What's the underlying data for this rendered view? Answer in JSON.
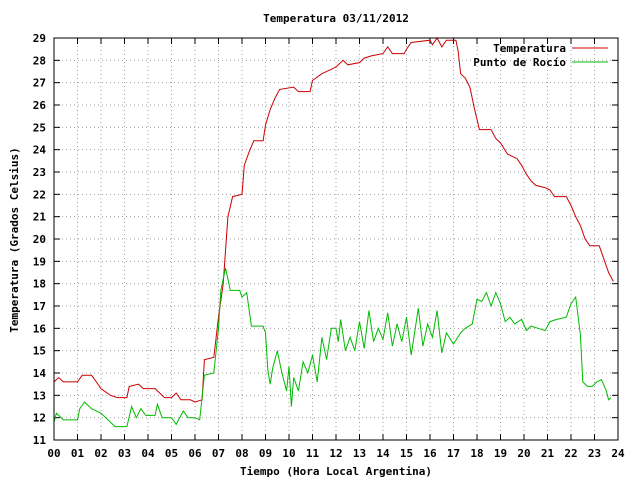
{
  "chart_data": {
    "type": "line",
    "title": "Temperatura 03/11/2012",
    "xlabel": "Tiempo (Hora Local Argentina)",
    "ylabel": "Temperatura (Grados Celsius)",
    "xlim": [
      0,
      24
    ],
    "ylim": [
      11,
      29
    ],
    "grid": true,
    "legend_position": "top-right",
    "x_ticks": [
      {
        "value": 0,
        "label": "00"
      },
      {
        "value": 1,
        "label": "01"
      },
      {
        "value": 2,
        "label": "02"
      },
      {
        "value": 3,
        "label": "03"
      },
      {
        "value": 4,
        "label": "04"
      },
      {
        "value": 5,
        "label": "05"
      },
      {
        "value": 6,
        "label": "06"
      },
      {
        "value": 7,
        "label": "07"
      },
      {
        "value": 8,
        "label": "08"
      },
      {
        "value": 9,
        "label": "09"
      },
      {
        "value": 10,
        "label": "10"
      },
      {
        "value": 11,
        "label": "11"
      },
      {
        "value": 12,
        "label": "12"
      },
      {
        "value": 13,
        "label": "13"
      },
      {
        "value": 14,
        "label": "14"
      },
      {
        "value": 15,
        "label": "15"
      },
      {
        "value": 16,
        "label": "16"
      },
      {
        "value": 17,
        "label": "17"
      },
      {
        "value": 18,
        "label": "18"
      },
      {
        "value": 19,
        "label": "19"
      },
      {
        "value": 20,
        "label": "20"
      },
      {
        "value": 21,
        "label": "21"
      },
      {
        "value": 22,
        "label": "22"
      },
      {
        "value": 23,
        "label": "23"
      },
      {
        "value": 24,
        "label": "24"
      }
    ],
    "y_ticks": [
      {
        "value": 11,
        "label": "11"
      },
      {
        "value": 12,
        "label": "12"
      },
      {
        "value": 13,
        "label": "13"
      },
      {
        "value": 14,
        "label": "14"
      },
      {
        "value": 15,
        "label": "15"
      },
      {
        "value": 16,
        "label": "16"
      },
      {
        "value": 17,
        "label": "17"
      },
      {
        "value": 18,
        "label": "18"
      },
      {
        "value": 19,
        "label": "19"
      },
      {
        "value": 20,
        "label": "20"
      },
      {
        "value": 21,
        "label": "21"
      },
      {
        "value": 22,
        "label": "22"
      },
      {
        "value": 23,
        "label": "23"
      },
      {
        "value": 24,
        "label": "24"
      },
      {
        "value": 25,
        "label": "25"
      },
      {
        "value": 26,
        "label": "26"
      },
      {
        "value": 27,
        "label": "27"
      },
      {
        "value": 28,
        "label": "28"
      },
      {
        "value": 29,
        "label": "29"
      }
    ],
    "series": [
      {
        "name": "Temperatura",
        "color": "#cc0000",
        "points": [
          [
            0.0,
            13.6
          ],
          [
            0.2,
            13.8
          ],
          [
            0.4,
            13.6
          ],
          [
            1.0,
            13.6
          ],
          [
            1.2,
            13.9
          ],
          [
            1.6,
            13.9
          ],
          [
            1.8,
            13.6
          ],
          [
            2.0,
            13.3
          ],
          [
            2.4,
            13.0
          ],
          [
            2.7,
            12.9
          ],
          [
            3.1,
            12.9
          ],
          [
            3.2,
            13.4
          ],
          [
            3.6,
            13.5
          ],
          [
            3.8,
            13.3
          ],
          [
            4.3,
            13.3
          ],
          [
            4.5,
            13.1
          ],
          [
            4.7,
            12.9
          ],
          [
            5.0,
            12.9
          ],
          [
            5.2,
            13.1
          ],
          [
            5.4,
            12.8
          ],
          [
            5.8,
            12.8
          ],
          [
            6.0,
            12.7
          ],
          [
            6.3,
            12.8
          ],
          [
            6.4,
            14.6
          ],
          [
            6.8,
            14.7
          ],
          [
            7.0,
            16.5
          ],
          [
            7.2,
            18.0
          ],
          [
            7.4,
            21.0
          ],
          [
            7.6,
            21.9
          ],
          [
            8.0,
            22.0
          ],
          [
            8.1,
            23.3
          ],
          [
            8.3,
            23.9
          ],
          [
            8.5,
            24.4
          ],
          [
            8.9,
            24.4
          ],
          [
            9.0,
            25.1
          ],
          [
            9.2,
            25.8
          ],
          [
            9.4,
            26.3
          ],
          [
            9.6,
            26.7
          ],
          [
            10.2,
            26.8
          ],
          [
            10.4,
            26.6
          ],
          [
            10.9,
            26.6
          ],
          [
            11.0,
            27.1
          ],
          [
            11.4,
            27.4
          ],
          [
            11.8,
            27.6
          ],
          [
            12.0,
            27.7
          ],
          [
            12.3,
            28.0
          ],
          [
            12.5,
            27.8
          ],
          [
            13.0,
            27.9
          ],
          [
            13.2,
            28.1
          ],
          [
            13.5,
            28.2
          ],
          [
            14.0,
            28.3
          ],
          [
            14.2,
            28.6
          ],
          [
            14.4,
            28.3
          ],
          [
            14.9,
            28.3
          ],
          [
            15.0,
            28.5
          ],
          [
            15.2,
            28.8
          ],
          [
            16.0,
            28.9
          ],
          [
            16.1,
            28.7
          ],
          [
            16.3,
            29.0
          ],
          [
            16.5,
            28.6
          ],
          [
            16.7,
            28.9
          ],
          [
            17.1,
            28.9
          ],
          [
            17.2,
            28.4
          ],
          [
            17.3,
            27.4
          ],
          [
            17.5,
            27.2
          ],
          [
            17.7,
            26.8
          ],
          [
            17.9,
            25.8
          ],
          [
            18.1,
            24.9
          ],
          [
            18.6,
            24.9
          ],
          [
            18.8,
            24.5
          ],
          [
            19.0,
            24.3
          ],
          [
            19.3,
            23.8
          ],
          [
            19.7,
            23.6
          ],
          [
            19.9,
            23.3
          ],
          [
            20.1,
            22.9
          ],
          [
            20.3,
            22.6
          ],
          [
            20.5,
            22.4
          ],
          [
            20.9,
            22.3
          ],
          [
            21.1,
            22.2
          ],
          [
            21.3,
            21.9
          ],
          [
            21.8,
            21.9
          ],
          [
            22.0,
            21.5
          ],
          [
            22.2,
            21.0
          ],
          [
            22.4,
            20.6
          ],
          [
            22.6,
            20.0
          ],
          [
            22.8,
            19.7
          ],
          [
            23.2,
            19.7
          ],
          [
            23.4,
            19.1
          ],
          [
            23.6,
            18.5
          ],
          [
            23.8,
            18.1
          ]
        ]
      },
      {
        "name": "Punto de Rocío",
        "color": "#00bb00",
        "points": [
          [
            0.0,
            11.8
          ],
          [
            0.1,
            12.2
          ],
          [
            0.2,
            12.1
          ],
          [
            0.4,
            11.9
          ],
          [
            1.0,
            11.9
          ],
          [
            1.1,
            12.4
          ],
          [
            1.3,
            12.7
          ],
          [
            1.6,
            12.4
          ],
          [
            2.0,
            12.2
          ],
          [
            2.3,
            11.9
          ],
          [
            2.6,
            11.6
          ],
          [
            3.1,
            11.6
          ],
          [
            3.3,
            12.5
          ],
          [
            3.5,
            12.0
          ],
          [
            3.7,
            12.4
          ],
          [
            3.9,
            12.1
          ],
          [
            4.3,
            12.1
          ],
          [
            4.4,
            12.6
          ],
          [
            4.6,
            12.0
          ],
          [
            5.0,
            12.0
          ],
          [
            5.2,
            11.7
          ],
          [
            5.5,
            12.3
          ],
          [
            5.7,
            12.0
          ],
          [
            6.0,
            12.0
          ],
          [
            6.2,
            11.9
          ],
          [
            6.4,
            13.9
          ],
          [
            6.8,
            14.0
          ],
          [
            7.0,
            16.0
          ],
          [
            7.1,
            17.7
          ],
          [
            7.3,
            18.7
          ],
          [
            7.5,
            17.7
          ],
          [
            7.9,
            17.7
          ],
          [
            8.0,
            17.4
          ],
          [
            8.2,
            17.6
          ],
          [
            8.4,
            16.1
          ],
          [
            8.9,
            16.1
          ],
          [
            9.0,
            15.8
          ],
          [
            9.1,
            14.1
          ],
          [
            9.2,
            13.5
          ],
          [
            9.3,
            14.2
          ],
          [
            9.5,
            15.0
          ],
          [
            9.7,
            14.0
          ],
          [
            9.9,
            13.2
          ],
          [
            10.0,
            14.3
          ],
          [
            10.1,
            12.5
          ],
          [
            10.2,
            13.8
          ],
          [
            10.4,
            13.2
          ],
          [
            10.6,
            14.5
          ],
          [
            10.8,
            14.0
          ],
          [
            11.0,
            14.8
          ],
          [
            11.2,
            13.6
          ],
          [
            11.4,
            15.6
          ],
          [
            11.6,
            14.6
          ],
          [
            11.8,
            16.0
          ],
          [
            12.0,
            16.0
          ],
          [
            12.1,
            15.4
          ],
          [
            12.2,
            16.4
          ],
          [
            12.4,
            15.0
          ],
          [
            12.6,
            15.6
          ],
          [
            12.8,
            15.0
          ],
          [
            13.0,
            16.3
          ],
          [
            13.2,
            15.1
          ],
          [
            13.4,
            16.8
          ],
          [
            13.6,
            15.4
          ],
          [
            13.8,
            16.0
          ],
          [
            14.0,
            15.5
          ],
          [
            14.2,
            16.7
          ],
          [
            14.4,
            15.2
          ],
          [
            14.6,
            16.2
          ],
          [
            14.8,
            15.4
          ],
          [
            15.0,
            16.5
          ],
          [
            15.2,
            14.8
          ],
          [
            15.5,
            16.9
          ],
          [
            15.7,
            15.2
          ],
          [
            15.9,
            16.2
          ],
          [
            16.1,
            15.6
          ],
          [
            16.3,
            16.8
          ],
          [
            16.5,
            14.9
          ],
          [
            16.7,
            15.8
          ],
          [
            17.0,
            15.3
          ],
          [
            17.3,
            15.8
          ],
          [
            17.5,
            16.0
          ],
          [
            17.8,
            16.2
          ],
          [
            18.0,
            17.3
          ],
          [
            18.2,
            17.2
          ],
          [
            18.4,
            17.6
          ],
          [
            18.6,
            17.0
          ],
          [
            18.8,
            17.6
          ],
          [
            19.0,
            17.1
          ],
          [
            19.2,
            16.3
          ],
          [
            19.4,
            16.5
          ],
          [
            19.6,
            16.2
          ],
          [
            19.9,
            16.4
          ],
          [
            20.1,
            15.9
          ],
          [
            20.3,
            16.1
          ],
          [
            20.6,
            16.0
          ],
          [
            20.9,
            15.9
          ],
          [
            21.1,
            16.3
          ],
          [
            21.4,
            16.4
          ],
          [
            21.8,
            16.5
          ],
          [
            22.0,
            17.1
          ],
          [
            22.2,
            17.4
          ],
          [
            22.4,
            15.7
          ],
          [
            22.5,
            13.6
          ],
          [
            22.7,
            13.4
          ],
          [
            22.9,
            13.4
          ],
          [
            23.1,
            13.6
          ],
          [
            23.3,
            13.7
          ],
          [
            23.5,
            13.2
          ],
          [
            23.6,
            12.8
          ],
          [
            23.7,
            12.9
          ]
        ]
      }
    ]
  }
}
